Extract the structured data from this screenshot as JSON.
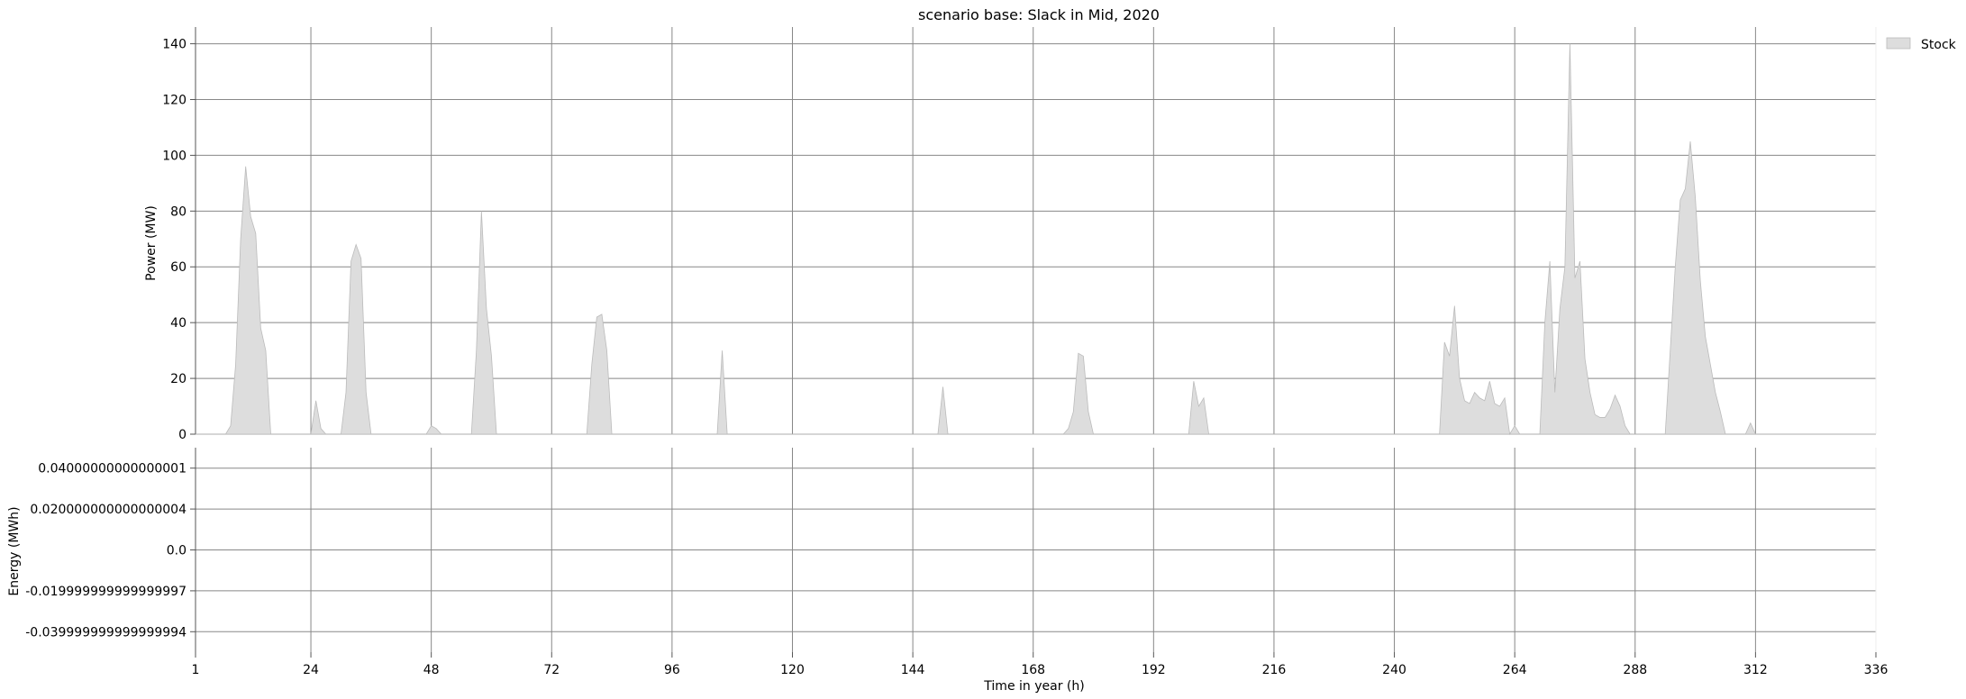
{
  "chart_data": [
    {
      "type": "area",
      "title": "scenario base: Slack in Mid, 2020",
      "ylabel": "Power (MW)",
      "xlabel": "",
      "xlim": [
        1,
        336
      ],
      "ylim": [
        0,
        146
      ],
      "xticks": [
        1,
        24,
        48,
        72,
        96,
        120,
        144,
        168,
        192,
        216,
        240,
        264,
        288,
        312,
        336
      ],
      "yticks": [
        0,
        20,
        40,
        60,
        80,
        100,
        120,
        140
      ],
      "grid": true,
      "legend_position": "top-right",
      "series": [
        {
          "name": "Stock",
          "color": "#dddddd",
          "points": [
            [
              1,
              0
            ],
            [
              7,
              0
            ],
            [
              8,
              3
            ],
            [
              9,
              25
            ],
            [
              10,
              70
            ],
            [
              11,
              96
            ],
            [
              12,
              78
            ],
            [
              13,
              72
            ],
            [
              14,
              38
            ],
            [
              15,
              30
            ],
            [
              16,
              0
            ],
            [
              23,
              0
            ],
            [
              24,
              0
            ],
            [
              25,
              12
            ],
            [
              26,
              2
            ],
            [
              27,
              0
            ],
            [
              30,
              0
            ],
            [
              31,
              15
            ],
            [
              32,
              62
            ],
            [
              33,
              68
            ],
            [
              34,
              63
            ],
            [
              35,
              15
            ],
            [
              36,
              0
            ],
            [
              47,
              0
            ],
            [
              48,
              3
            ],
            [
              49,
              2
            ],
            [
              50,
              0
            ],
            [
              56,
              0
            ],
            [
              57,
              30
            ],
            [
              58,
              80
            ],
            [
              59,
              45
            ],
            [
              60,
              28
            ],
            [
              61,
              0
            ],
            [
              79,
              0
            ],
            [
              80,
              25
            ],
            [
              81,
              42
            ],
            [
              82,
              43
            ],
            [
              83,
              30
            ],
            [
              84,
              0
            ],
            [
              105,
              0
            ],
            [
              106,
              30
            ],
            [
              107,
              0
            ],
            [
              149,
              0
            ],
            [
              150,
              17
            ],
            [
              151,
              0
            ],
            [
              174,
              0
            ],
            [
              175,
              2
            ],
            [
              176,
              8
            ],
            [
              177,
              29
            ],
            [
              178,
              28
            ],
            [
              179,
              8
            ],
            [
              180,
              0
            ],
            [
              199,
              0
            ],
            [
              200,
              19
            ],
            [
              201,
              10
            ],
            [
              202,
              13
            ],
            [
              203,
              0
            ],
            [
              249,
              0
            ],
            [
              250,
              33
            ],
            [
              251,
              28
            ],
            [
              252,
              46
            ],
            [
              253,
              20
            ],
            [
              254,
              12
            ],
            [
              255,
              11
            ],
            [
              256,
              15
            ],
            [
              257,
              13
            ],
            [
              258,
              12
            ],
            [
              259,
              19
            ],
            [
              260,
              11
            ],
            [
              261,
              10
            ],
            [
              262,
              13
            ],
            [
              263,
              0
            ],
            [
              264,
              3
            ],
            [
              265,
              0
            ],
            [
              269,
              0
            ],
            [
              270,
              40
            ],
            [
              271,
              62
            ],
            [
              272,
              15
            ],
            [
              273,
              45
            ],
            [
              274,
              60
            ],
            [
              275,
              140
            ],
            [
              276,
              56
            ],
            [
              277,
              62
            ],
            [
              278,
              27
            ],
            [
              279,
              15
            ],
            [
              280,
              7
            ],
            [
              281,
              6
            ],
            [
              282,
              6
            ],
            [
              283,
              9
            ],
            [
              284,
              14
            ],
            [
              285,
              10
            ],
            [
              286,
              3
            ],
            [
              287,
              0
            ],
            [
              294,
              0
            ],
            [
              295,
              30
            ],
            [
              296,
              60
            ],
            [
              297,
              84
            ],
            [
              298,
              88
            ],
            [
              299,
              105
            ],
            [
              300,
              85
            ],
            [
              301,
              55
            ],
            [
              302,
              35
            ],
            [
              303,
              25
            ],
            [
              304,
              15
            ],
            [
              305,
              8
            ],
            [
              306,
              0
            ],
            [
              310,
              0
            ],
            [
              311,
              4
            ],
            [
              312,
              0
            ],
            [
              336,
              0
            ]
          ]
        }
      ]
    },
    {
      "type": "area",
      "title": "",
      "ylabel": "Energy (MWh)",
      "xlabel": "Time in year (h)",
      "xlim": [
        1,
        336
      ],
      "ylim": [
        -0.05,
        0.05
      ],
      "xticks": [
        1,
        24,
        48,
        72,
        96,
        120,
        144,
        168,
        192,
        216,
        240,
        264,
        288,
        312,
        336
      ],
      "yticks": [
        -0.039999999999999994,
        -0.019999999999999997,
        0.0,
        0.020000000000000004,
        0.04000000000000001
      ],
      "ytick_labels": [
        "-0.039999999999999994",
        "-0.019999999999999997",
        "0.0",
        "0.020000000000000004",
        "0.04000000000000001"
      ],
      "grid": true,
      "series": []
    }
  ],
  "colors": {
    "grid": "#888888",
    "fill": "#dddddd",
    "stroke": "#bbbbbb"
  }
}
